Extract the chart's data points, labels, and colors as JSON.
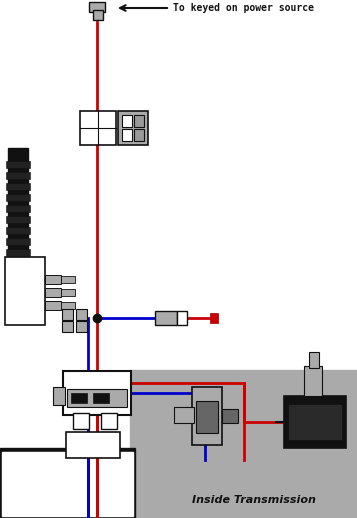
{
  "bg_color": "#ffffff",
  "gray_bg_color": "#aaaaaa",
  "wire_red": "#cc0000",
  "wire_blue": "#0000cc",
  "wire_black": "#111111",
  "title_label": "To keyed on power source",
  "inside_label": "Inside Transmission",
  "fig_w": 3.57,
  "fig_h": 5.18,
  "dpi": 100
}
